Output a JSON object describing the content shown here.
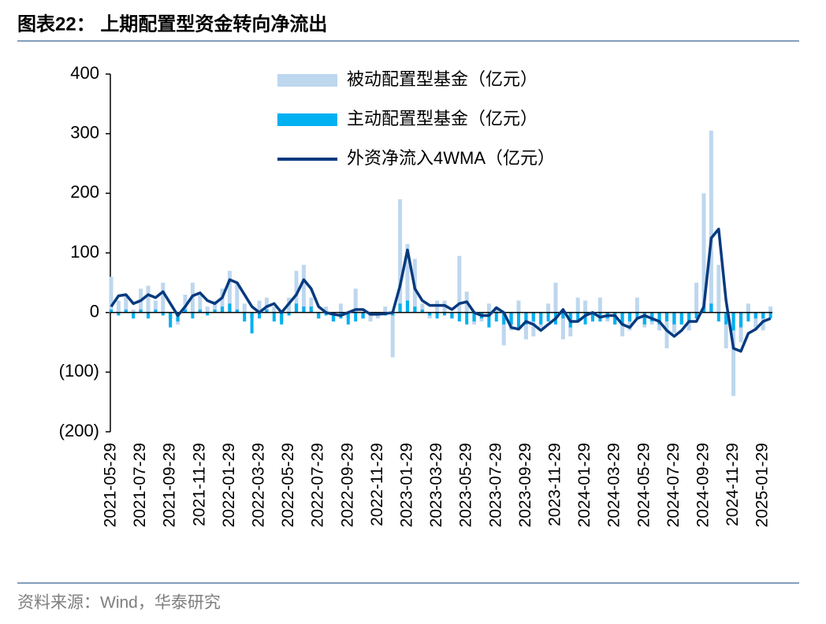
{
  "header": {
    "title": "图表22： 上期配置型资金转向净流出"
  },
  "chart_data": {
    "type": "bar-line",
    "categories": [
      "2021-05-29",
      null,
      null,
      null,
      "2021-07-29",
      null,
      null,
      null,
      "2021-09-29",
      null,
      null,
      null,
      "2021-11-29",
      null,
      null,
      null,
      "2022-01-29",
      null,
      null,
      null,
      "2022-03-29",
      null,
      null,
      null,
      "2022-05-29",
      null,
      null,
      null,
      "2022-07-29",
      null,
      null,
      null,
      "2022-09-29",
      null,
      null,
      null,
      "2022-11-29",
      null,
      null,
      null,
      "2023-01-29",
      null,
      null,
      null,
      "2023-03-29",
      null,
      null,
      null,
      "2023-05-29",
      null,
      null,
      null,
      "2023-07-29",
      null,
      null,
      null,
      "2023-09-29",
      null,
      null,
      null,
      "2023-11-29",
      null,
      null,
      null,
      "2024-01-29",
      null,
      null,
      null,
      "2024-03-29",
      null,
      null,
      null,
      "2024-05-29",
      null,
      null,
      null,
      "2024-07-29",
      null,
      null,
      null,
      "2024-09-29",
      null,
      null,
      null,
      "2024-11-29",
      null,
      null,
      null,
      "2025-01-29",
      null
    ],
    "series": [
      {
        "name": "被动配置型基金（亿元）",
        "kind": "bar",
        "color": "#bdd7ee",
        "values": [
          60,
          20,
          30,
          5,
          40,
          45,
          20,
          50,
          -10,
          -20,
          30,
          50,
          30,
          10,
          20,
          40,
          70,
          50,
          15,
          -10,
          20,
          25,
          10,
          -15,
          25,
          70,
          80,
          25,
          -10,
          10,
          -15,
          15,
          -10,
          40,
          -10,
          -15,
          -10,
          10,
          -75,
          190,
          115,
          90,
          15,
          -10,
          20,
          20,
          -10,
          95,
          35,
          -20,
          -15,
          15,
          10,
          -55,
          -30,
          20,
          -45,
          -40,
          -25,
          15,
          50,
          -45,
          -40,
          25,
          20,
          -10,
          25,
          -15,
          -20,
          -40,
          -30,
          25,
          -25,
          -20,
          -30,
          -60,
          -35,
          -20,
          -30,
          50,
          200,
          305,
          80,
          -60,
          -140,
          -50,
          15,
          -30,
          -30,
          10
        ]
      },
      {
        "name": "主动配置型基金（亿元）",
        "kind": "bar",
        "color": "#00b0f0",
        "values": [
          5,
          -5,
          5,
          -10,
          5,
          -10,
          5,
          -5,
          -25,
          -15,
          5,
          -10,
          5,
          -5,
          5,
          10,
          15,
          5,
          -15,
          -35,
          -10,
          5,
          -15,
          -20,
          -5,
          15,
          10,
          10,
          -10,
          -5,
          -15,
          -10,
          -20,
          -15,
          -10,
          -5,
          -5,
          -5,
          -5,
          15,
          20,
          10,
          5,
          -5,
          -10,
          -5,
          -10,
          -15,
          -20,
          -15,
          -10,
          -25,
          -15,
          -20,
          -20,
          -25,
          -20,
          -15,
          -20,
          -15,
          -20,
          -10,
          -25,
          -15,
          -20,
          -15,
          -15,
          -10,
          -20,
          -20,
          -15,
          -10,
          -20,
          -15,
          -20,
          -15,
          -20,
          -20,
          -15,
          -10,
          10,
          15,
          -15,
          -20,
          -30,
          -25,
          -15,
          -10,
          -10,
          -10
        ]
      },
      {
        "name": "外资净流入4WMA（亿元）",
        "kind": "line",
        "color": "#063a7e",
        "values": [
          10,
          28,
          30,
          15,
          20,
          30,
          25,
          35,
          15,
          -5,
          10,
          28,
          33,
          20,
          15,
          25,
          55,
          50,
          30,
          10,
          0,
          10,
          15,
          0,
          15,
          30,
          55,
          40,
          10,
          0,
          -3,
          -5,
          0,
          5,
          5,
          -3,
          -3,
          -2,
          0,
          45,
          105,
          40,
          20,
          12,
          12,
          12,
          5,
          15,
          18,
          0,
          -5,
          -5,
          8,
          0,
          -25,
          -28,
          -15,
          -20,
          -30,
          -20,
          -10,
          5,
          -15,
          -15,
          -5,
          0,
          -8,
          -5,
          -5,
          -20,
          -25,
          -10,
          -5,
          -10,
          -15,
          -30,
          -40,
          -30,
          -15,
          -15,
          10,
          125,
          140,
          20,
          -60,
          -65,
          -35,
          -28,
          -15,
          -10
        ]
      }
    ],
    "ylim": [
      -200,
      400
    ],
    "yticks": [
      {
        "value": -200,
        "label": "(200)"
      },
      {
        "value": -100,
        "label": "(100)"
      },
      0,
      100,
      200,
      300,
      400
    ],
    "legend": "top"
  },
  "footer": {
    "source": "资料来源：Wind，华泰研究"
  }
}
